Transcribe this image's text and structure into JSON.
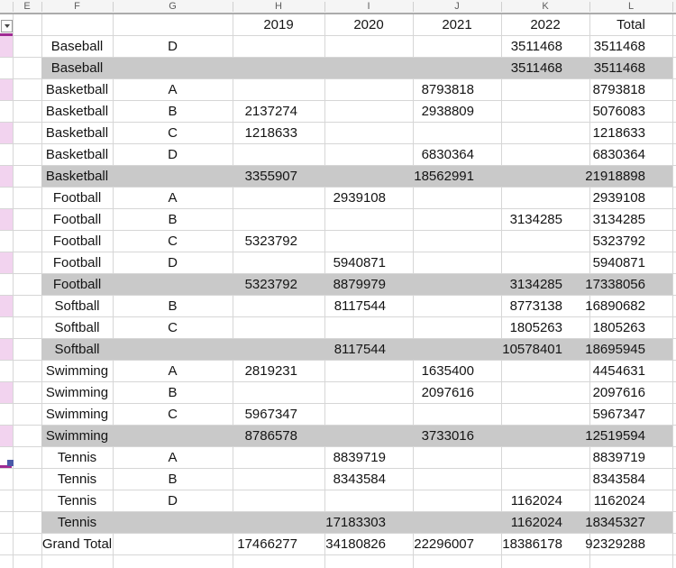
{
  "columns": {
    "letters": [
      "E",
      "F",
      "G",
      "H",
      "I",
      "J",
      "K",
      "L"
    ]
  },
  "filter": {
    "dropdown_icon": "caret-down"
  },
  "pivot": {
    "year_headers": [
      "2019",
      "2020",
      "2021",
      "2022"
    ],
    "total_header": "Total",
    "rows": [
      {
        "kind": "data",
        "sport": "Baseball",
        "division": "D",
        "values": [
          "",
          "",
          "",
          "3511468"
        ],
        "total": "3511468",
        "left_band": true
      },
      {
        "kind": "subtotal",
        "sport": "Baseball",
        "values": [
          "",
          "",
          "",
          "3511468"
        ],
        "total": "3511468",
        "left_band": false
      },
      {
        "kind": "data",
        "sport": "Basketball",
        "division": "A",
        "values": [
          "",
          "",
          "8793818",
          ""
        ],
        "total": "8793818",
        "left_band": true
      },
      {
        "kind": "data",
        "sport": "Basketball",
        "division": "B",
        "values": [
          "2137274",
          "",
          "2938809",
          ""
        ],
        "total": "5076083",
        "left_band": false
      },
      {
        "kind": "data",
        "sport": "Basketball",
        "division": "C",
        "values": [
          "1218633",
          "",
          "",
          ""
        ],
        "total": "1218633",
        "left_band": true
      },
      {
        "kind": "data",
        "sport": "Basketball",
        "division": "D",
        "values": [
          "",
          "",
          "6830364",
          ""
        ],
        "total": "6830364",
        "left_band": false
      },
      {
        "kind": "subtotal",
        "sport": "Basketball",
        "values": [
          "3355907",
          "",
          "18562991",
          ""
        ],
        "total": "21918898",
        "left_band": true
      },
      {
        "kind": "data",
        "sport": "Football",
        "division": "A",
        "values": [
          "",
          "2939108",
          "",
          ""
        ],
        "total": "2939108",
        "left_band": false
      },
      {
        "kind": "data",
        "sport": "Football",
        "division": "B",
        "values": [
          "",
          "",
          "",
          "3134285"
        ],
        "total": "3134285",
        "left_band": true
      },
      {
        "kind": "data",
        "sport": "Football",
        "division": "C",
        "values": [
          "5323792",
          "",
          "",
          ""
        ],
        "total": "5323792",
        "left_band": false
      },
      {
        "kind": "data",
        "sport": "Football",
        "division": "D",
        "values": [
          "",
          "5940871",
          "",
          ""
        ],
        "total": "5940871",
        "left_band": true
      },
      {
        "kind": "subtotal",
        "sport": "Football",
        "values": [
          "5323792",
          "8879979",
          "",
          "3134285"
        ],
        "total": "17338056",
        "left_band": false
      },
      {
        "kind": "data",
        "sport": "Softball",
        "division": "B",
        "values": [
          "",
          "8117544",
          "",
          "8773138"
        ],
        "total": "16890682",
        "left_band": true
      },
      {
        "kind": "data",
        "sport": "Softball",
        "division": "C",
        "values": [
          "",
          "",
          "",
          "1805263"
        ],
        "total": "1805263",
        "left_band": false
      },
      {
        "kind": "subtotal",
        "sport": "Softball",
        "values": [
          "",
          "8117544",
          "",
          "10578401"
        ],
        "total": "18695945",
        "left_band": true
      },
      {
        "kind": "data",
        "sport": "Swimming",
        "division": "A",
        "values": [
          "2819231",
          "",
          "1635400",
          ""
        ],
        "total": "4454631",
        "left_band": false
      },
      {
        "kind": "data",
        "sport": "Swimming",
        "division": "B",
        "values": [
          "",
          "",
          "2097616",
          ""
        ],
        "total": "2097616",
        "left_band": true
      },
      {
        "kind": "data",
        "sport": "Swimming",
        "division": "C",
        "values": [
          "5967347",
          "",
          "",
          ""
        ],
        "total": "5967347",
        "left_band": false
      },
      {
        "kind": "subtotal",
        "sport": "Swimming",
        "values": [
          "8786578",
          "",
          "3733016",
          ""
        ],
        "total": "12519594",
        "left_band": true
      },
      {
        "kind": "data",
        "sport": "Tennis",
        "division": "A",
        "values": [
          "",
          "8839719",
          "",
          ""
        ],
        "total": "8839719",
        "left_band": false
      },
      {
        "kind": "data",
        "sport": "Tennis",
        "division": "B",
        "values": [
          "",
          "8343584",
          "",
          ""
        ],
        "total": "8343584",
        "left_band": false
      },
      {
        "kind": "data",
        "sport": "Tennis",
        "division": "D",
        "values": [
          "",
          "",
          "",
          "1162024"
        ],
        "total": "1162024",
        "left_band": false
      },
      {
        "kind": "subtotal",
        "sport": "Tennis",
        "values": [
          "",
          "17183303",
          "",
          "1162024"
        ],
        "total": "18345327",
        "left_band": false
      }
    ],
    "grand_total": {
      "label": "Grand Total",
      "values": [
        "17466277",
        "34180826",
        "22296007",
        "18386178"
      ],
      "total": "92329288"
    }
  },
  "colors": {
    "band_pink": "#f2d3ef",
    "subtotal_gray": "#c9c9c9",
    "selection_purple": "#a02b93",
    "fill_handle_blue": "#4a5aa8"
  }
}
